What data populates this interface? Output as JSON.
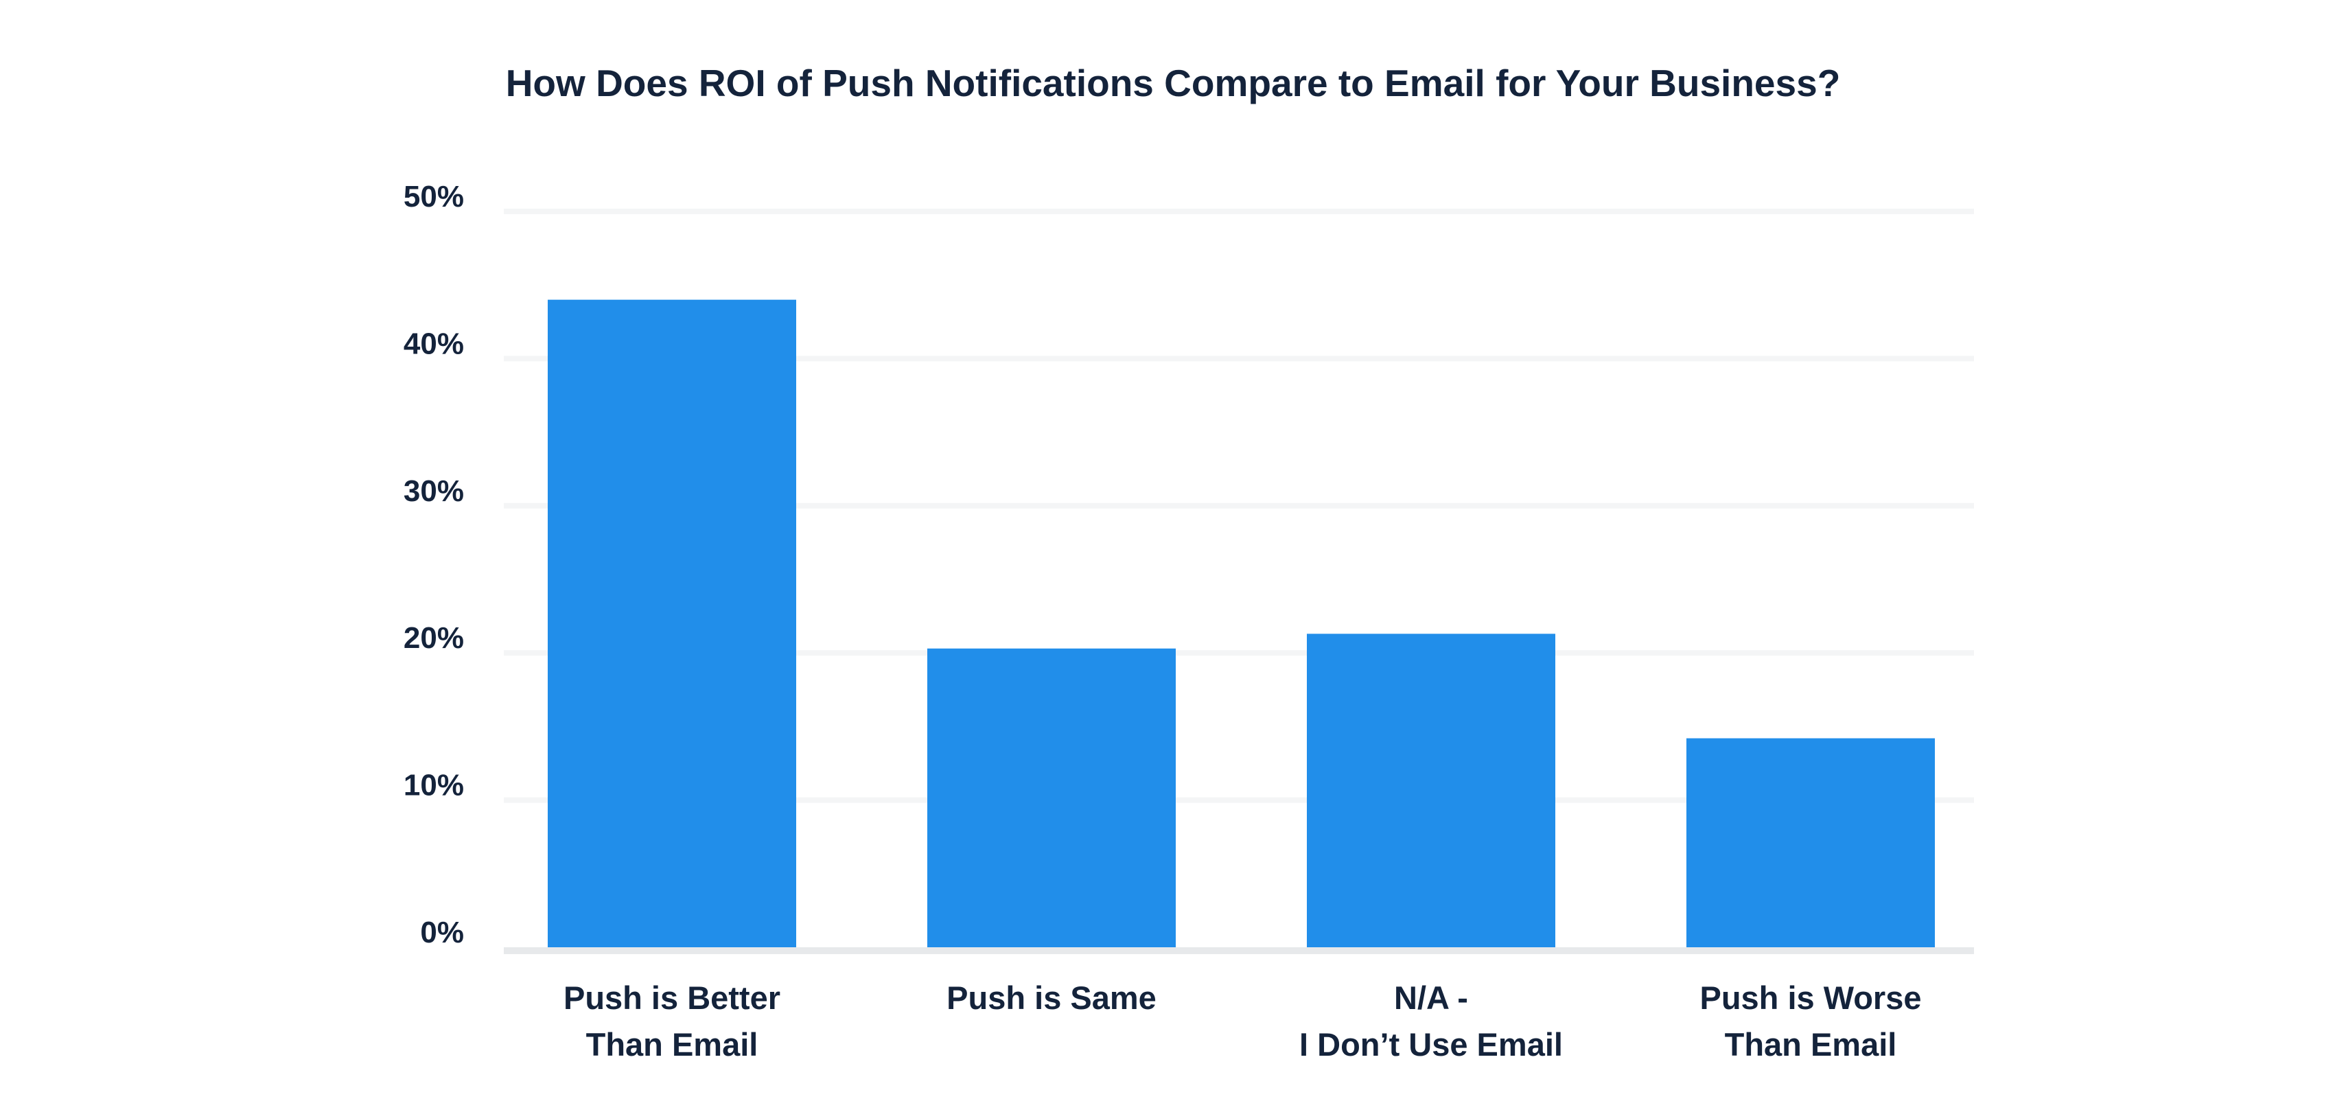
{
  "chart_data": {
    "type": "bar",
    "title": "How Does ROI of Push Notifications Compare to Email for Your Business?",
    "xlabel": "",
    "ylabel": "",
    "categories": [
      [
        "Push is Better",
        "Than Email"
      ],
      [
        "Push is Same"
      ],
      [
        "N/A -",
        "I Don’t Use Email"
      ],
      [
        "Push is Worse",
        "Than Email"
      ]
    ],
    "values": [
      44,
      20.3,
      21.3,
      14.2
    ],
    "ylim": [
      0,
      50
    ],
    "yticks": [
      0,
      10,
      20,
      30,
      40,
      50
    ],
    "ytick_labels": [
      "0%",
      "10%",
      "20%",
      "30%",
      "40%",
      "50%"
    ],
    "grid": true,
    "legend": "none",
    "colors": {
      "bar": "#218eea",
      "grid": "#f4f5f6",
      "axis": "#e7e9eb",
      "text": "#14233b"
    }
  }
}
